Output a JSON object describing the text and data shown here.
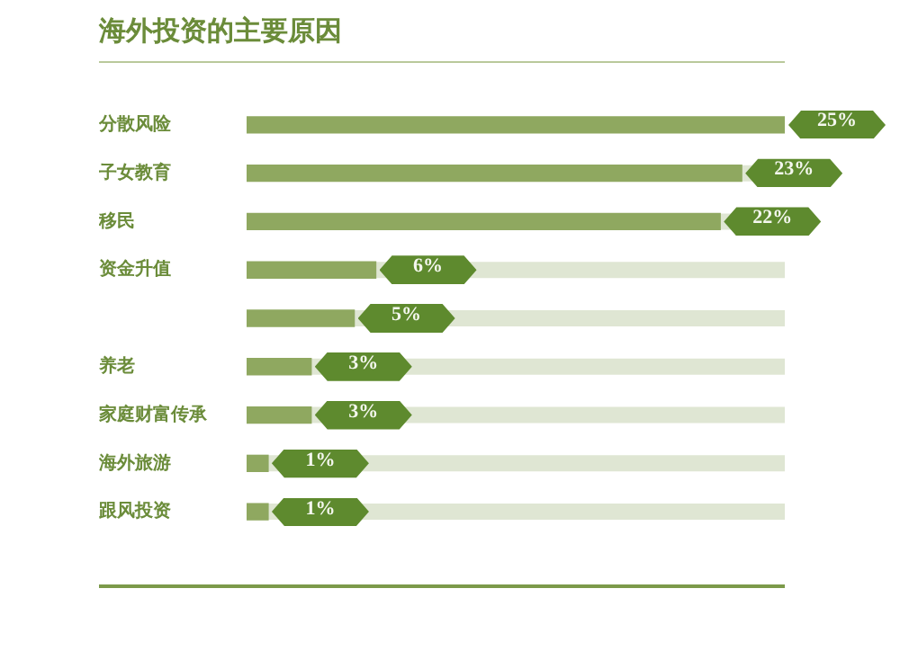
{
  "chart_data": {
    "type": "bar",
    "orientation": "horizontal",
    "title": "海外投资的主要原因",
    "categories": [
      "分散风险",
      "子女教育",
      "移民",
      "资金升值",
      null,
      "养老",
      "家庭财富传承",
      "海外旅游",
      "跟风投资"
    ],
    "values": [
      25,
      23,
      22,
      6,
      5,
      3,
      3,
      1,
      1
    ],
    "value_labels": [
      "25%",
      "23%",
      "22%",
      "6%",
      "5%",
      "3%",
      "3%",
      "1%",
      "1%"
    ],
    "color": "#8fa860",
    "legend": false,
    "tick_labels": "y"
  }
}
